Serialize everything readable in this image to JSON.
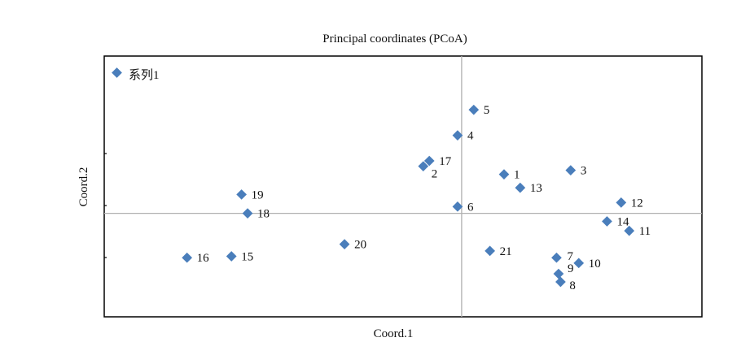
{
  "chart_data": {
    "type": "scatter",
    "title": "Principal coordinates (PCoA)",
    "xlabel": "Coord.1",
    "ylabel": "Coord.2",
    "marker_color": "#4a7ebb",
    "grid_color": "#b0b0b0",
    "legend": {
      "entries": [
        "系列1"
      ],
      "placement": "top-left"
    },
    "series": [
      {
        "name": "系列1",
        "points": [
          {
            "label": "1",
            "x": 0.105,
            "y": 0.145
          },
          {
            "label": "2",
            "x": -0.095,
            "y": 0.175
          },
          {
            "label": "3",
            "x": 0.27,
            "y": 0.16
          },
          {
            "label": "4",
            "x": -0.01,
            "y": 0.29
          },
          {
            "label": "5",
            "x": 0.03,
            "y": 0.385
          },
          {
            "label": "6",
            "x": -0.01,
            "y": 0.025
          },
          {
            "label": "7",
            "x": 0.235,
            "y": -0.165
          },
          {
            "label": "8",
            "x": 0.245,
            "y": -0.255
          },
          {
            "label": "9",
            "x": 0.24,
            "y": -0.225
          },
          {
            "label": "10",
            "x": 0.29,
            "y": -0.185
          },
          {
            "label": "11",
            "x": 0.415,
            "y": -0.065
          },
          {
            "label": "12",
            "x": 0.395,
            "y": 0.04
          },
          {
            "label": "13",
            "x": 0.145,
            "y": 0.095
          },
          {
            "label": "14",
            "x": 0.36,
            "y": -0.03
          },
          {
            "label": "15",
            "x": -0.57,
            "y": -0.16
          },
          {
            "label": "16",
            "x": -0.68,
            "y": -0.165
          },
          {
            "label": "17",
            "x": -0.08,
            "y": 0.195
          },
          {
            "label": "18",
            "x": -0.53,
            "y": 0.0
          },
          {
            "label": "19",
            "x": -0.545,
            "y": 0.07
          },
          {
            "label": "20",
            "x": -0.29,
            "y": -0.115
          },
          {
            "label": "21",
            "x": 0.07,
            "y": -0.14
          }
        ]
      }
    ],
    "xlim": [
      -0.885,
      0.595
    ],
    "ylim": [
      -0.385,
      0.585
    ]
  }
}
